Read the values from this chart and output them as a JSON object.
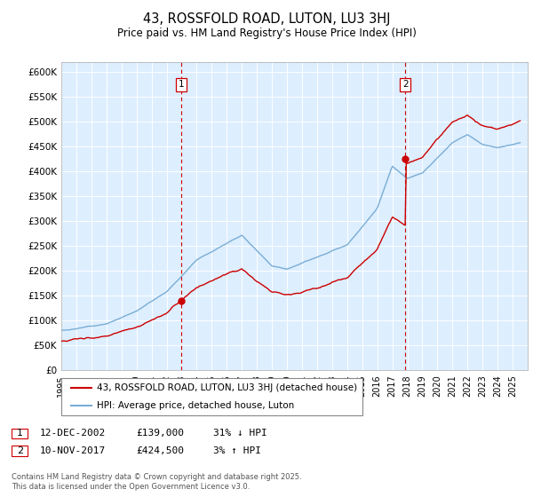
{
  "title": "43, ROSSFOLD ROAD, LUTON, LU3 3HJ",
  "subtitle": "Price paid vs. HM Land Registry's House Price Index (HPI)",
  "ylim": [
    0,
    620000
  ],
  "xlim_start": 1995,
  "xlim_end": 2026,
  "bg_color": "#ddeeff",
  "hpi_color": "#7aadd4",
  "sale_color": "#cc0000",
  "vline_color": "#cc0000",
  "sale1_x": 2002.95,
  "sale1_y": 139000,
  "sale2_x": 2017.86,
  "sale2_y": 424500,
  "legend_label1": "43, ROSSFOLD ROAD, LUTON, LU3 3HJ (detached house)",
  "legend_label2": "HPI: Average price, detached house, Luton",
  "annot1_label": "1",
  "annot1_date": "12-DEC-2002",
  "annot1_price": "£139,000",
  "annot1_hpi": "31% ↓ HPI",
  "annot2_label": "2",
  "annot2_date": "10-NOV-2017",
  "annot2_price": "£424,500",
  "annot2_hpi": "3% ↑ HPI",
  "footer": "Contains HM Land Registry data © Crown copyright and database right 2025.\nThis data is licensed under the Open Government Licence v3.0.",
  "ytick_vals": [
    0,
    50000,
    100000,
    150000,
    200000,
    250000,
    300000,
    350000,
    400000,
    450000,
    500000,
    550000,
    600000
  ],
  "ytick_labels": [
    "£0",
    "£50K",
    "£100K",
    "£150K",
    "£200K",
    "£250K",
    "£300K",
    "£350K",
    "£400K",
    "£450K",
    "£500K",
    "£550K",
    "£600K"
  ],
  "xtick_vals": [
    1995,
    1996,
    1997,
    1998,
    1999,
    2000,
    2001,
    2002,
    2003,
    2004,
    2005,
    2006,
    2007,
    2008,
    2009,
    2010,
    2011,
    2012,
    2013,
    2014,
    2015,
    2016,
    2017,
    2018,
    2019,
    2020,
    2021,
    2022,
    2023,
    2024,
    2025
  ]
}
